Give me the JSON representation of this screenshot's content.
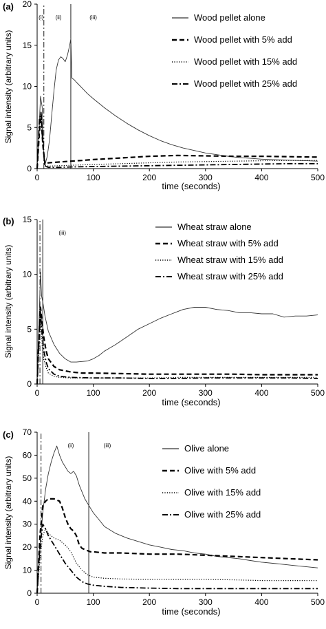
{
  "chart_data": [
    {
      "type": "line",
      "panel_label": "(a)",
      "xlabel": "time (seconds)",
      "ylabel": "Signal intensity (arbitrary units)",
      "xlim": [
        0,
        500
      ],
      "ylim": [
        0,
        20
      ],
      "xticks": [
        0,
        100,
        200,
        300,
        400,
        500
      ],
      "yticks": [
        0,
        5,
        10,
        15,
        20
      ],
      "legend_position": "top-right",
      "grid": false,
      "region_labels": [
        {
          "text": "(i)",
          "x": 7
        },
        {
          "text": "(ii)",
          "x": 38
        },
        {
          "text": "(iii)",
          "x": 100
        }
      ],
      "vlines": [
        {
          "x": 12,
          "style": "dashdot"
        },
        {
          "x": 60,
          "style": "solid"
        }
      ],
      "series": [
        {
          "name": "Wood pellet alone",
          "style": "solid",
          "x": [
            0,
            3,
            6,
            9,
            12,
            15,
            18,
            22,
            26,
            30,
            34,
            38,
            42,
            46,
            50,
            54,
            58,
            60,
            62,
            66,
            70,
            80,
            90,
            100,
            120,
            140,
            160,
            180,
            200,
            220,
            240,
            260,
            280,
            300,
            320,
            340,
            360,
            380,
            400,
            420,
            440,
            460,
            480,
            500
          ],
          "y": [
            0,
            4,
            8.8,
            7.5,
            1.0,
            0.7,
            1.5,
            3.5,
            6.5,
            9.5,
            12.0,
            13.2,
            13.6,
            13.4,
            13.0,
            13.8,
            15.0,
            15.8,
            11.0,
            10.8,
            10.5,
            9.8,
            9.1,
            8.5,
            7.4,
            6.4,
            5.5,
            4.7,
            4.0,
            3.4,
            2.9,
            2.5,
            2.2,
            1.9,
            1.7,
            1.5,
            1.35,
            1.25,
            1.15,
            1.1,
            1.05,
            1.0,
            0.95,
            0.9
          ]
        },
        {
          "name": "Wood pellet with 5% add",
          "style": "dashed",
          "x": [
            0,
            4,
            7,
            10,
            14,
            20,
            40,
            60,
            80,
            100,
            150,
            200,
            250,
            300,
            350,
            400,
            450,
            500
          ],
          "y": [
            0,
            4.5,
            6.5,
            3.0,
            0.5,
            0.7,
            0.8,
            0.9,
            1.0,
            1.1,
            1.3,
            1.5,
            1.6,
            1.55,
            1.5,
            1.5,
            1.45,
            1.4
          ]
        },
        {
          "name": "Wood pellet with 15% add",
          "style": "dotted",
          "x": [
            0,
            4,
            7,
            10,
            14,
            20,
            40,
            60,
            100,
            150,
            200,
            250,
            300,
            350,
            400,
            450,
            500
          ],
          "y": [
            0,
            5.5,
            7.0,
            3.5,
            0.4,
            0.3,
            0.35,
            0.4,
            0.5,
            0.6,
            0.7,
            0.8,
            0.85,
            0.9,
            0.95,
            1.0,
            1.0
          ]
        },
        {
          "name": "Wood pellet with 25% add",
          "style": "dashdot",
          "x": [
            0,
            4,
            7,
            10,
            14,
            20,
            40,
            60,
            100,
            150,
            200,
            250,
            300,
            350,
            400,
            450,
            500
          ],
          "y": [
            0,
            6.0,
            6.8,
            3.0,
            0.3,
            0.15,
            0.15,
            0.2,
            0.25,
            0.3,
            0.35,
            0.4,
            0.45,
            0.5,
            0.55,
            0.6,
            0.6
          ]
        }
      ]
    },
    {
      "type": "line",
      "panel_label": "(b)",
      "xlabel": "time (seconds)",
      "ylabel": "Signal intensity (arbitrary units)",
      "xlim": [
        0,
        500
      ],
      "ylim": [
        0,
        15
      ],
      "xticks": [
        0,
        100,
        200,
        300,
        400,
        500
      ],
      "yticks": [
        0,
        5,
        10,
        15
      ],
      "legend_position": "top-right",
      "grid": false,
      "region_labels": [
        {
          "text": "(iii)",
          "x": 45
        }
      ],
      "vlines": [
        {
          "x": 5,
          "style": "dashdot"
        },
        {
          "x": 10,
          "style": "solid"
        }
      ],
      "series": [
        {
          "name": "Wheat straw alone",
          "style": "solid",
          "x": [
            0,
            3,
            6,
            8,
            10,
            14,
            20,
            30,
            40,
            50,
            60,
            70,
            80,
            90,
            100,
            110,
            120,
            140,
            160,
            180,
            200,
            220,
            240,
            260,
            280,
            300,
            320,
            340,
            360,
            380,
            400,
            420,
            440,
            460,
            480,
            500
          ],
          "y": [
            0,
            5,
            10.2,
            8.0,
            7.5,
            6.2,
            4.8,
            3.6,
            2.8,
            2.3,
            2.0,
            2.0,
            2.05,
            2.1,
            2.3,
            2.6,
            3.0,
            3.6,
            4.3,
            5.0,
            5.5,
            6.0,
            6.4,
            6.8,
            7.0,
            7.0,
            6.8,
            6.7,
            6.5,
            6.5,
            6.4,
            6.4,
            6.1,
            6.2,
            6.2,
            6.3
          ]
        },
        {
          "name": "Wheat straw with 5% add",
          "style": "dashed",
          "x": [
            0,
            3,
            6,
            9,
            12,
            16,
            20,
            30,
            40,
            60,
            80,
            100,
            150,
            200,
            250,
            300,
            350,
            400,
            450,
            500
          ],
          "y": [
            0,
            4,
            7.0,
            5.5,
            4.2,
            3.0,
            2.3,
            1.6,
            1.3,
            1.1,
            1.0,
            1.0,
            0.95,
            0.9,
            0.9,
            0.9,
            0.9,
            0.85,
            0.85,
            0.85
          ]
        },
        {
          "name": "Wheat straw with 15% add",
          "style": "dotted",
          "x": [
            0,
            3,
            6,
            9,
            12,
            16,
            20,
            30,
            40,
            60,
            100,
            150,
            200,
            250,
            300,
            350,
            400,
            450,
            500
          ],
          "y": [
            0,
            3,
            5.5,
            3.5,
            2.2,
            1.5,
            1.0,
            0.7,
            0.6,
            0.55,
            0.55,
            0.55,
            0.55,
            0.6,
            0.6,
            0.6,
            0.6,
            0.6,
            0.6
          ]
        },
        {
          "name": "Wheat straw with 25% add",
          "style": "dashdot",
          "x": [
            0,
            3,
            6,
            9,
            12,
            16,
            20,
            30,
            40,
            60,
            100,
            150,
            200,
            250,
            300,
            350,
            400,
            450,
            500
          ],
          "y": [
            0,
            4,
            6.5,
            4.5,
            3.0,
            2.0,
            1.4,
            0.9,
            0.7,
            0.6,
            0.55,
            0.55,
            0.5,
            0.5,
            0.55,
            0.55,
            0.55,
            0.55,
            0.5
          ]
        }
      ]
    },
    {
      "type": "line",
      "panel_label": "(c)",
      "xlabel": "time (seconds)",
      "ylabel": "Signal intensity (arbitrary units)",
      "xlim": [
        0,
        500
      ],
      "ylim": [
        0,
        70
      ],
      "xticks": [
        0,
        100,
        200,
        300,
        400,
        500
      ],
      "yticks": [
        0,
        10,
        20,
        30,
        40,
        50,
        60,
        70
      ],
      "legend_position": "top-right",
      "grid": false,
      "region_labels": [
        {
          "text": "(ii)",
          "x": 60
        },
        {
          "text": "(iii)",
          "x": 125
        }
      ],
      "vlines": [
        {
          "x": 7,
          "style": "dashdot"
        },
        {
          "x": 92,
          "style": "solid"
        }
      ],
      "series": [
        {
          "name": "Olive alone",
          "style": "solid",
          "x": [
            0,
            5,
            10,
            15,
            20,
            25,
            30,
            35,
            40,
            45,
            50,
            55,
            60,
            65,
            70,
            75,
            80,
            85,
            90,
            95,
            100,
            110,
            120,
            140,
            160,
            180,
            200,
            220,
            240,
            260,
            280,
            300,
            320,
            340,
            360,
            380,
            400,
            420,
            440,
            460,
            480,
            500
          ],
          "y": [
            0,
            20,
            35,
            45,
            52,
            57,
            61,
            64,
            60,
            57,
            55,
            53,
            52,
            53,
            51,
            47,
            44,
            41,
            39,
            37,
            35,
            32,
            29,
            26,
            24,
            22.5,
            21,
            20,
            19,
            18.5,
            17.5,
            17,
            16,
            15.5,
            15,
            14.2,
            13.5,
            13,
            12.5,
            12,
            11.5,
            11
          ]
        },
        {
          "name": "Olive with 5% add",
          "style": "dashed",
          "x": [
            0,
            5,
            10,
            15,
            20,
            30,
            40,
            45,
            50,
            55,
            60,
            65,
            70,
            75,
            80,
            85,
            90,
            95,
            100,
            120,
            150,
            200,
            250,
            300,
            350,
            400,
            450,
            500
          ],
          "y": [
            0,
            25,
            38,
            40,
            41,
            41,
            40,
            37,
            33,
            30,
            28,
            27,
            25,
            21,
            19.5,
            19,
            18.5,
            18,
            18,
            17.5,
            17.5,
            17,
            17,
            16.5,
            16,
            15.5,
            15,
            14.5
          ]
        },
        {
          "name": "Olive with 15% add",
          "style": "dotted",
          "x": [
            0,
            5,
            10,
            15,
            20,
            30,
            40,
            50,
            60,
            70,
            80,
            90,
            100,
            120,
            150,
            200,
            250,
            300,
            350,
            400,
            450,
            500
          ],
          "y": [
            0,
            15,
            25,
            28,
            26,
            24,
            23,
            21,
            18,
            13,
            10,
            8,
            7,
            6.5,
            6.2,
            6,
            6,
            6,
            5.8,
            5.5,
            5.5,
            5.5
          ]
        },
        {
          "name": "Olive with 25% add",
          "style": "dashdot",
          "x": [
            0,
            5,
            10,
            15,
            20,
            30,
            40,
            50,
            60,
            70,
            80,
            90,
            100,
            120,
            150,
            200,
            250,
            300,
            350,
            400,
            450,
            500
          ],
          "y": [
            0,
            20,
            30,
            28,
            25,
            21,
            17,
            13,
            10,
            7,
            5,
            4,
            3.5,
            3,
            2.5,
            2.2,
            2,
            2,
            2,
            2,
            2,
            2
          ]
        }
      ]
    }
  ]
}
